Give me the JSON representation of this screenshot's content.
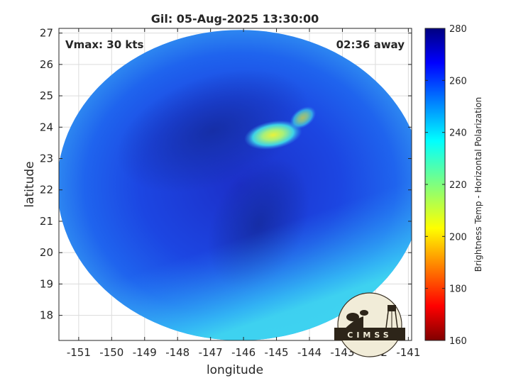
{
  "chart_data": {
    "type": "heatmap",
    "title": "Gil: 05-Aug-2025 13:30:00",
    "xlabel": "longitude",
    "ylabel": "latitude",
    "xlim": [
      -151.6,
      -140.9
    ],
    "ylim": [
      17.2,
      27.15
    ],
    "x_ticks": [
      "-151",
      "-150",
      "-149",
      "-148",
      "-147",
      "-146",
      "-145",
      "-144",
      "-143",
      "-142",
      "-141"
    ],
    "y_ticks": [
      "18",
      "19",
      "20",
      "21",
      "22",
      "23",
      "24",
      "25",
      "26",
      "27"
    ],
    "grid": true,
    "annotations": {
      "vmax": "Vmax: 30 kts",
      "away": "02:36 away"
    },
    "colorbar": {
      "label": "Brightness Temp - Horizontal Polarization",
      "min": 160,
      "max": 280,
      "ticks": [
        "160",
        "180",
        "200",
        "220",
        "240",
        "260",
        "280"
      ],
      "colormap": "jet"
    },
    "swath": {
      "center": [
        -146.1,
        22.15
      ],
      "radius_deg_lon": 5.55,
      "radius_deg_lat": 4.95
    },
    "cold_region": {
      "center": [
        -145.1,
        23.75
      ],
      "min_temp": 203
    },
    "logo": "CIMSS"
  }
}
